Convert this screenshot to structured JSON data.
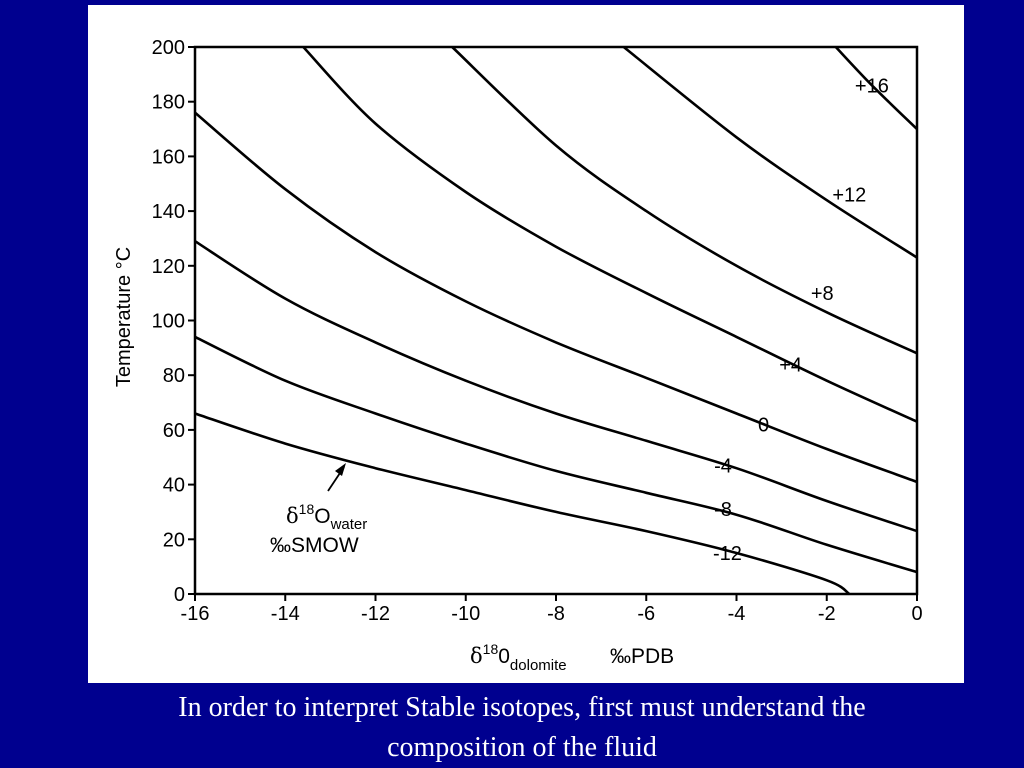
{
  "slide": {
    "background": "#00008f",
    "caption_lines": [
      "In order to interpret Stable isotopes, first must understand the",
      "composition of the fluid"
    ]
  },
  "chart_data": {
    "type": "line",
    "xlabel": {
      "delta": "δ",
      "sup": "18",
      "base": "0",
      "sub": "dolomite",
      "unit": "‰PDB"
    },
    "ylabel": "Temperature °C",
    "xlim": [
      -16,
      0
    ],
    "ylim": [
      0,
      200
    ],
    "xticks": [
      "-16",
      "-14",
      "-12",
      "-10",
      "-8",
      "-6",
      "-4",
      "-2",
      "0"
    ],
    "yticks": [
      "0",
      "20",
      "40",
      "60",
      "80",
      "100",
      "120",
      "140",
      "160",
      "180",
      "200"
    ],
    "grid": false,
    "legend_annotation": {
      "delta": "δ",
      "sup": "18",
      "base": "O",
      "sub": "water",
      "unit": "‰SMOW"
    },
    "series": [
      {
        "name": "-12",
        "label": "-12",
        "x": [
          -16,
          -14,
          -12,
          -10,
          -8,
          -6,
          -4,
          -2,
          -1.5
        ],
        "y": [
          66,
          55,
          46,
          38,
          30,
          23,
          15,
          5,
          0
        ]
      },
      {
        "name": "-8",
        "label": "-8",
        "x": [
          -16,
          -14,
          -12,
          -10,
          -8,
          -6,
          -4,
          -2,
          0
        ],
        "y": [
          94,
          78,
          66,
          55,
          45,
          37,
          29,
          18,
          8
        ]
      },
      {
        "name": "-4",
        "label": "-4",
        "x": [
          -16,
          -14,
          -12,
          -10,
          -8,
          -6,
          -4,
          -2,
          0
        ],
        "y": [
          129,
          108,
          92,
          78,
          66,
          56,
          46,
          34,
          23
        ]
      },
      {
        "name": "0",
        "label": "0",
        "x": [
          -16,
          -14,
          -12,
          -10,
          -8,
          -6,
          -4,
          -2,
          0
        ],
        "y": [
          176,
          148,
          125,
          107,
          92,
          79,
          66,
          53,
          41
        ]
      },
      {
        "name": "+4",
        "label": "+4",
        "x": [
          -13.6,
          -12,
          -10,
          -8,
          -6,
          -4,
          -2,
          0
        ],
        "y": [
          200,
          172,
          147,
          127,
          110,
          94,
          78,
          63
        ]
      },
      {
        "name": "+8",
        "label": "+8",
        "x": [
          -10.3,
          -8,
          -6,
          -4,
          -2,
          0
        ],
        "y": [
          200,
          164,
          140,
          120,
          103,
          88
        ]
      },
      {
        "name": "+12",
        "label": "+12",
        "x": [
          -6.5,
          -4,
          -2,
          0
        ],
        "y": [
          200,
          167,
          144,
          123
        ]
      },
      {
        "name": "+16",
        "label": "+16",
        "x": [
          -1.8,
          -1,
          0
        ],
        "y": [
          200,
          186,
          170
        ]
      }
    ]
  }
}
